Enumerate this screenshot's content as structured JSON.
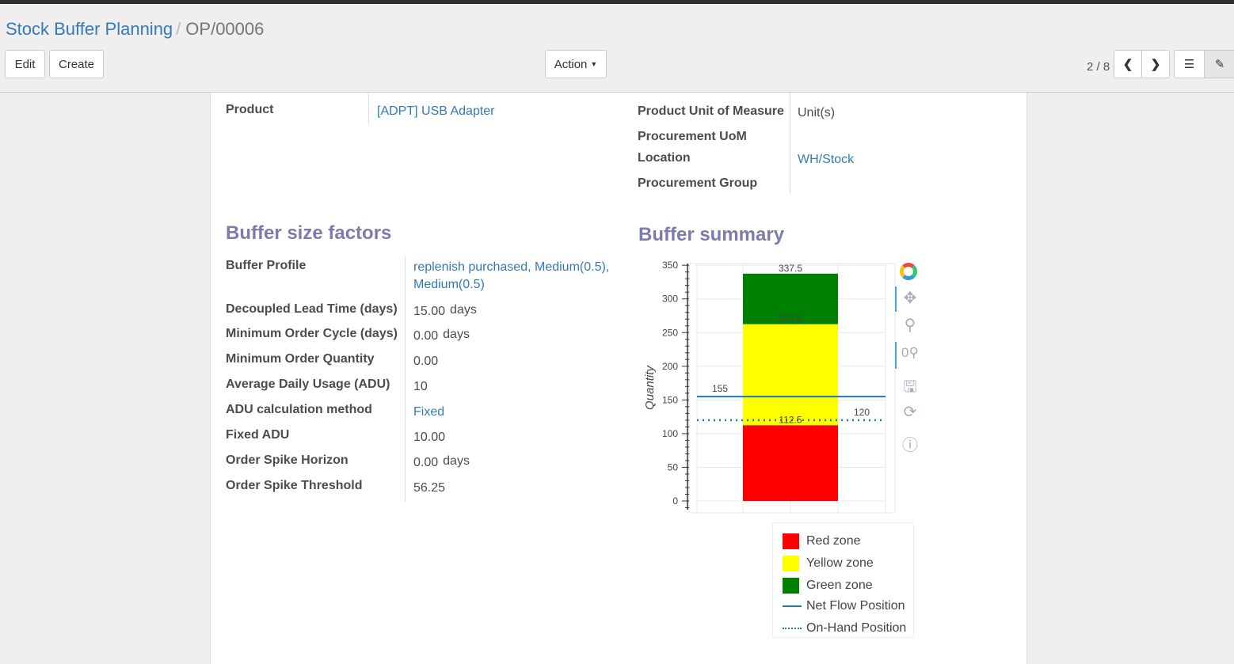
{
  "breadcrumb": {
    "parent": "Stock Buffer Planning",
    "current": "OP/00006"
  },
  "toolbar": {
    "edit": "Edit",
    "create": "Create",
    "action": "Action",
    "pager": "2 / 8"
  },
  "header_fields": {
    "product_label": "Product",
    "product_value": "[ADPT] USB Adapter",
    "uom_label": "Product Unit of Measure",
    "uom_value": "Unit(s)",
    "proc_uom_label": "Procurement UoM",
    "location_label": "Location",
    "location_value": "WH/Stock",
    "group_label": "Procurement Group"
  },
  "factors": {
    "title": "Buffer size factors",
    "rows": [
      {
        "label": "Buffer Profile",
        "value": "replenish purchased, Medium(0.5),",
        "value2": "Medium(0.5)"
      },
      {
        "label": "Decoupled Lead Time (days)",
        "value": "15.00",
        "unit": "days"
      },
      {
        "label": "Minimum Order Cycle (days)",
        "value": "0.00",
        "unit": "days"
      },
      {
        "label": "Minimum Order Quantity",
        "value": "0.00"
      },
      {
        "label": "Average Daily Usage (ADU)",
        "value": "10"
      },
      {
        "label": "ADU calculation method",
        "value": "Fixed"
      },
      {
        "label": "Fixed ADU",
        "value": "10.00"
      },
      {
        "label": "Order Spike Horizon",
        "value": "0.00",
        "unit": "days"
      },
      {
        "label": "Order Spike Threshold",
        "value": "56.25"
      }
    ]
  },
  "summary": {
    "title": "Buffer summary"
  },
  "chart_data": {
    "type": "bar",
    "ylabel": "Quantity",
    "ylim": [
      -5,
      355
    ],
    "yticks": [
      0,
      50,
      100,
      150,
      200,
      250,
      300,
      350
    ],
    "grid": true,
    "stacked_zones": [
      {
        "name": "Red zone",
        "from": 0,
        "to": 112.5,
        "color": "#ff0000"
      },
      {
        "name": "Yellow zone",
        "from": 112.5,
        "to": 262.5,
        "color": "#ffff00"
      },
      {
        "name": "Green zone",
        "from": 262.5,
        "to": 337.5,
        "color": "#008000"
      }
    ],
    "bar_labels": [
      "337.5",
      "262.5",
      "112.5"
    ],
    "lines": [
      {
        "name": "Net Flow Position",
        "value": 155,
        "style": "solid",
        "color": "#1f77b4",
        "label": "155"
      },
      {
        "name": "On-Hand Position",
        "value": 120,
        "style": "dotted",
        "color": "#1f77b4",
        "label": "120"
      }
    ],
    "legend_position": "bottom-right-outside"
  }
}
